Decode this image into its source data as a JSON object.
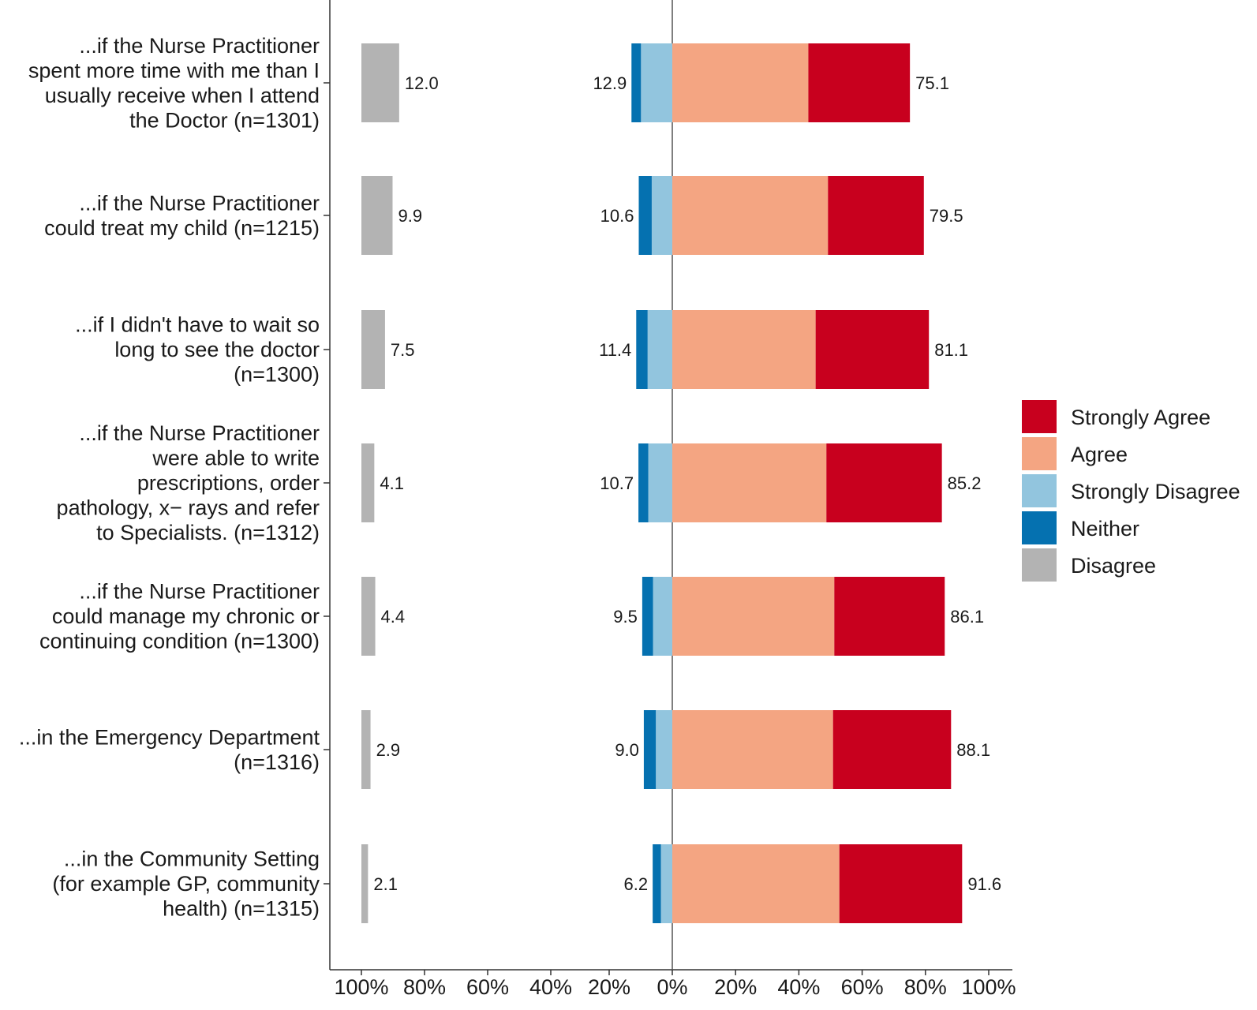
{
  "chart_data": {
    "type": "bar",
    "orientation": "horizontal",
    "stacked": "diverging",
    "title": "",
    "xlabel": "",
    "ylabel": "",
    "xlim": [
      -100,
      100
    ],
    "legend_position": "right",
    "colors": {
      "Strongly Agree": "#c8001e",
      "Agree": "#f4a582",
      "Strongly Disagree": "#92c5de",
      "Neither": "#0571b0",
      "Disagree": "#b3b3b3"
    },
    "legend": [
      "Strongly Agree",
      "Agree",
      "Strongly Disagree",
      "Neither",
      "Disagree"
    ],
    "left_panel_ticks": [
      "100%",
      "80%",
      "60%",
      "40%",
      "20%"
    ],
    "main_panel_ticks": [
      "0%",
      "20%",
      "40%",
      "60%",
      "80%",
      "100%"
    ],
    "categories": [
      {
        "label": [
          "...if the Nurse Practitioner",
          "spent more time with me than I",
          "usually receive when I attend",
          "the Doctor (n=1301)"
        ],
        "disagree_total": "12.0",
        "neg_total": "12.9",
        "pos_total": "75.1",
        "values": {
          "Disagree": 12.0,
          "Neither": 3.0,
          "Strongly Disagree": 9.9,
          "Agree": 43.0,
          "Strongly Agree": 32.1
        }
      },
      {
        "label": [
          "...if the Nurse Practitioner",
          "could treat my child (n=1215)"
        ],
        "disagree_total": "9.9",
        "neg_total": "10.6",
        "pos_total": "79.5",
        "values": {
          "Disagree": 9.9,
          "Neither": 4.1,
          "Strongly Disagree": 6.5,
          "Agree": 49.2,
          "Strongly Agree": 30.3
        }
      },
      {
        "label": [
          "...if I didn't have to wait so",
          "long to see the doctor",
          "(n=1300)"
        ],
        "disagree_total": "7.5",
        "neg_total": "11.4",
        "pos_total": "81.1",
        "values": {
          "Disagree": 7.5,
          "Neither": 3.6,
          "Strongly Disagree": 7.8,
          "Agree": 45.3,
          "Strongly Agree": 35.8
        }
      },
      {
        "label": [
          "...if the Nurse Practitioner",
          "were able to write",
          "prescriptions, order",
          "pathology, x− rays and refer",
          "to Specialists. (n=1312)"
        ],
        "disagree_total": "4.1",
        "neg_total": "10.7",
        "pos_total": "85.2",
        "values": {
          "Disagree": 4.1,
          "Neither": 3.1,
          "Strongly Disagree": 7.6,
          "Agree": 48.7,
          "Strongly Agree": 36.5
        }
      },
      {
        "label": [
          "...if the Nurse Practitioner",
          "could manage my chronic or",
          "continuing condition (n=1300)"
        ],
        "disagree_total": "4.4",
        "neg_total": "9.5",
        "pos_total": "86.1",
        "values": {
          "Disagree": 4.4,
          "Neither": 3.4,
          "Strongly Disagree": 6.1,
          "Agree": 51.2,
          "Strongly Agree": 34.9
        }
      },
      {
        "label": [
          "...in the Emergency Department",
          "(n=1316)"
        ],
        "disagree_total": "2.9",
        "neg_total": "9.0",
        "pos_total": "88.1",
        "values": {
          "Disagree": 2.9,
          "Neither": 3.8,
          "Strongly Disagree": 5.2,
          "Agree": 50.8,
          "Strongly Agree": 37.3
        }
      },
      {
        "label": [
          "...in the Community Setting",
          "(for example GP, community",
          "health) (n=1315)"
        ],
        "disagree_total": "2.1",
        "neg_total": "6.2",
        "pos_total": "91.6",
        "values": {
          "Disagree": 2.1,
          "Neither": 2.6,
          "Strongly Disagree": 3.6,
          "Agree": 52.8,
          "Strongly Agree": 38.8
        }
      }
    ]
  }
}
